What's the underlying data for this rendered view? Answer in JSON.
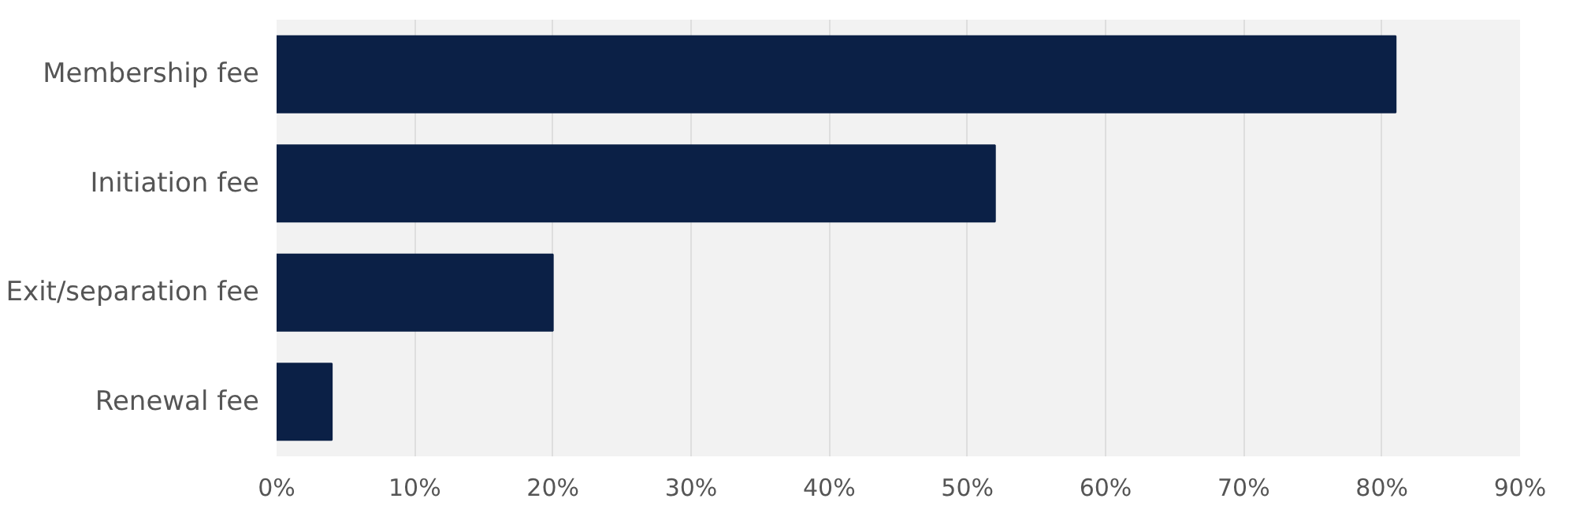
{
  "chart_data": {
    "type": "bar",
    "orientation": "horizontal",
    "categories": [
      "Membership fee",
      "Initiation fee",
      "Exit/separation fee",
      "Renewal fee"
    ],
    "values": [
      81,
      52,
      20,
      4
    ],
    "color": "#0b2046",
    "xlim": [
      0,
      90
    ],
    "xticks": [
      {
        "value": 0,
        "label": "0%"
      },
      {
        "value": 10,
        "label": "10%"
      },
      {
        "value": 20,
        "label": "20%"
      },
      {
        "value": 30,
        "label": "30%"
      },
      {
        "value": 40,
        "label": "40%"
      },
      {
        "value": 50,
        "label": "50%"
      },
      {
        "value": 60,
        "label": "60%"
      },
      {
        "value": 70,
        "label": "70%"
      },
      {
        "value": 80,
        "label": "80%"
      },
      {
        "value": 90,
        "label": "90%"
      }
    ],
    "grid": "x"
  }
}
